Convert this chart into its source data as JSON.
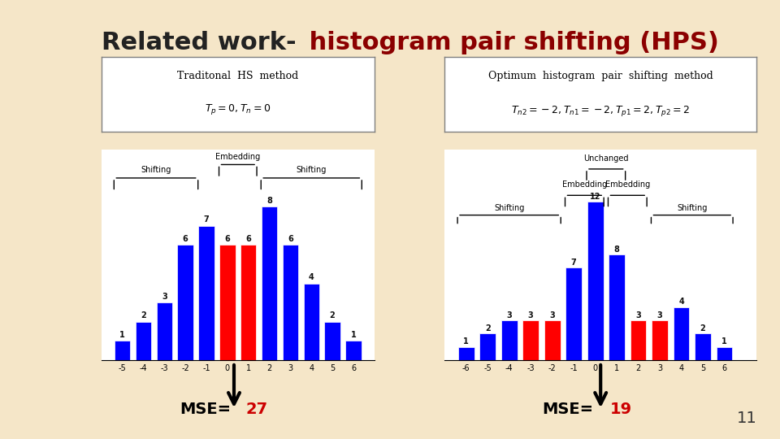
{
  "title_bold": "Related work-",
  "title_normal": " histogram pair shifting (HPS)",
  "background_color": "#f5e6c8",
  "plot_bg": "#ffffff",
  "left_box_title": "Traditonal  HS  method",
  "left_box_sub": "T_p = 0, T_n = 0",
  "left_bars_x": [
    -5,
    -4,
    -3,
    -2,
    -1,
    0,
    1,
    2,
    3,
    4,
    5,
    6
  ],
  "left_bars_h": [
    1,
    2,
    3,
    6,
    7,
    6,
    6,
    8,
    6,
    4,
    2,
    1
  ],
  "left_bars_colors": [
    "blue",
    "blue",
    "blue",
    "blue",
    "blue",
    "red",
    "red",
    "blue",
    "blue",
    "blue",
    "blue",
    "blue"
  ],
  "left_xlabel_vals": [
    -5,
    -4,
    -3,
    -2,
    -1,
    0,
    1,
    2,
    3,
    4,
    5,
    6
  ],
  "left_shifting_label": "Shifting",
  "left_embedding_label": "Embedding",
  "left_shifting2_label": "Shifting",
  "left_mse_text": "MSE=",
  "left_mse_val": "27",
  "left_mse_color": "#cc0000",
  "right_box_title": "Optimum  histogram  pair  shifting  method",
  "right_box_sub": "T_n2=-2, T_n1=-2, T_p1=2, T_p2=2",
  "right_bars_x": [
    -6,
    -5,
    -4,
    -3,
    -2,
    -1,
    0,
    1,
    2,
    3,
    4,
    5,
    6
  ],
  "right_bars_h": [
    1,
    2,
    3,
    3,
    3,
    7,
    12,
    8,
    3,
    3,
    4,
    2,
    1
  ],
  "right_bars_colors": [
    "blue",
    "blue",
    "blue",
    "red",
    "red",
    "blue",
    "blue",
    "blue",
    "red",
    "red",
    "blue",
    "blue",
    "blue"
  ],
  "right_xlabel_vals": [
    -6,
    -5,
    -4,
    -3,
    -2,
    -1,
    0,
    1,
    2,
    3,
    4,
    5,
    6
  ],
  "right_unchanged_label": "Unchanged",
  "right_embedding_label1": "Embedding",
  "right_embedding_label2": "Embedding",
  "right_shifting_label1": "Shifting",
  "right_shifting_label2": "Shifting",
  "right_mse_text": "MSE=",
  "right_mse_val": "19",
  "right_mse_color": "#cc0000",
  "slide_number": "11",
  "arrow_color": "#111111"
}
